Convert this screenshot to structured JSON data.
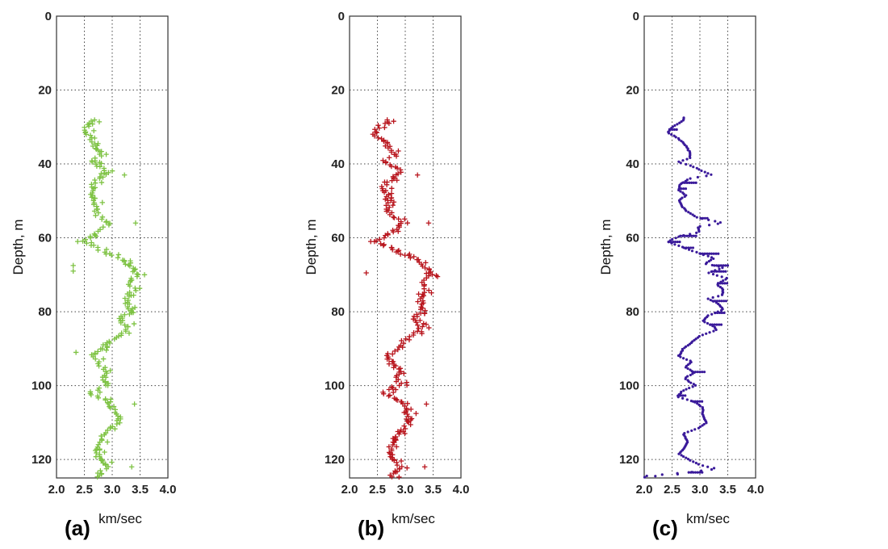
{
  "chart_data": [
    {
      "type": "scatter",
      "panel_label": "(a)",
      "xlabel": "km/sec",
      "ylabel": "Depth, m",
      "xlim": [
        2.0,
        4.0
      ],
      "ylim": [
        0,
        125
      ],
      "y_inverted": true,
      "xticks": [
        "2.0",
        "2.5",
        "3.0",
        "3.5",
        "4.0"
      ],
      "yticks": [
        "0",
        "20",
        "40",
        "60",
        "80",
        "100",
        "120"
      ],
      "grid": true,
      "color": "#7dc242",
      "marker": "plus",
      "profile": [
        [
          28,
          2.72
        ],
        [
          30,
          2.52
        ],
        [
          32,
          2.55
        ],
        [
          34,
          2.65
        ],
        [
          36,
          2.75
        ],
        [
          38,
          2.82
        ],
        [
          39,
          2.6
        ],
        [
          40,
          2.72
        ],
        [
          42,
          2.92
        ],
        [
          44,
          2.75
        ],
        [
          46,
          2.62
        ],
        [
          48,
          2.65
        ],
        [
          50,
          2.7
        ],
        [
          52,
          2.68
        ],
        [
          54,
          2.75
        ],
        [
          56,
          2.95
        ],
        [
          58,
          2.8
        ],
        [
          60,
          2.6
        ],
        [
          61,
          2.45
        ],
        [
          62,
          2.62
        ],
        [
          64,
          2.9
        ],
        [
          66,
          3.2
        ],
        [
          68,
          3.35
        ],
        [
          70,
          3.45
        ],
        [
          72,
          3.3
        ],
        [
          74,
          3.4
        ],
        [
          76,
          3.25
        ],
        [
          78,
          3.3
        ],
        [
          80,
          3.35
        ],
        [
          82,
          3.1
        ],
        [
          84,
          3.3
        ],
        [
          86,
          3.15
        ],
        [
          88,
          2.95
        ],
        [
          90,
          2.85
        ],
        [
          92,
          2.65
        ],
        [
          94,
          2.75
        ],
        [
          96,
          2.9
        ],
        [
          98,
          2.85
        ],
        [
          100,
          2.9
        ],
        [
          102,
          2.6
        ],
        [
          104,
          2.85
        ],
        [
          106,
          3.0
        ],
        [
          108,
          3.05
        ],
        [
          110,
          3.1
        ],
        [
          112,
          2.95
        ],
        [
          114,
          2.8
        ],
        [
          116,
          2.75
        ],
        [
          118,
          2.72
        ],
        [
          120,
          2.8
        ],
        [
          122,
          2.9
        ],
        [
          124,
          2.75
        ]
      ],
      "outliers": [
        [
          67.5,
          2.3
        ],
        [
          69,
          2.3
        ],
        [
          91,
          2.35
        ],
        [
          56,
          3.42
        ],
        [
          43,
          3.22
        ],
        [
          105,
          3.4
        ],
        [
          122,
          3.35
        ],
        [
          70,
          3.58
        ],
        [
          61,
          2.38
        ]
      ]
    },
    {
      "type": "scatter",
      "panel_label": "(b)",
      "xlabel": "km/sec",
      "ylabel": "Depth, m",
      "xlim": [
        2.0,
        4.0
      ],
      "ylim": [
        0,
        125
      ],
      "y_inverted": true,
      "xticks": [
        "2.0",
        "2.5",
        "3.0",
        "3.5",
        "4.0"
      ],
      "yticks": [
        "0",
        "20",
        "40",
        "60",
        "80",
        "100",
        "120"
      ],
      "grid": true,
      "color": "#b8141c",
      "marker": "plus",
      "profile": [
        [
          28,
          2.72
        ],
        [
          30,
          2.52
        ],
        [
          32,
          2.45
        ],
        [
          34,
          2.65
        ],
        [
          36,
          2.75
        ],
        [
          38,
          2.82
        ],
        [
          39,
          2.6
        ],
        [
          40,
          2.72
        ],
        [
          42,
          2.92
        ],
        [
          44,
          2.75
        ],
        [
          46,
          2.62
        ],
        [
          48,
          2.65
        ],
        [
          50,
          2.7
        ],
        [
          52,
          2.68
        ],
        [
          54,
          2.75
        ],
        [
          56,
          2.95
        ],
        [
          58,
          2.8
        ],
        [
          60,
          2.6
        ],
        [
          61,
          2.45
        ],
        [
          62,
          2.62
        ],
        [
          64,
          2.9
        ],
        [
          66,
          3.2
        ],
        [
          68,
          3.35
        ],
        [
          70,
          3.45
        ],
        [
          72,
          3.3
        ],
        [
          74,
          3.4
        ],
        [
          76,
          3.25
        ],
        [
          78,
          3.3
        ],
        [
          80,
          3.35
        ],
        [
          82,
          3.1
        ],
        [
          84,
          3.3
        ],
        [
          86,
          3.15
        ],
        [
          88,
          2.95
        ],
        [
          90,
          2.85
        ],
        [
          92,
          2.65
        ],
        [
          94,
          2.75
        ],
        [
          96,
          2.9
        ],
        [
          98,
          2.85
        ],
        [
          100,
          2.9
        ],
        [
          102,
          2.6
        ],
        [
          104,
          2.85
        ],
        [
          106,
          3.0
        ],
        [
          108,
          3.05
        ],
        [
          110,
          3.1
        ],
        [
          112,
          2.95
        ],
        [
          114,
          2.8
        ],
        [
          116,
          2.75
        ],
        [
          118,
          2.72
        ],
        [
          120,
          2.8
        ],
        [
          122,
          2.9
        ],
        [
          124,
          2.75
        ]
      ],
      "outliers": [
        [
          69.5,
          2.3
        ],
        [
          43,
          3.22
        ],
        [
          56,
          3.42
        ],
        [
          70.5,
          3.58
        ],
        [
          105,
          3.38
        ],
        [
          122,
          3.35
        ],
        [
          61,
          2.38
        ]
      ]
    },
    {
      "type": "scatter",
      "panel_label": "(c)",
      "xlabel": "km/sec",
      "ylabel": "Depth, m",
      "xlim": [
        2.0,
        4.0
      ],
      "ylim": [
        0,
        125
      ],
      "y_inverted": true,
      "xticks": [
        "2.0",
        "2.5",
        "3.0",
        "3.5",
        "4.0"
      ],
      "yticks": [
        "0",
        "20",
        "40",
        "60",
        "80",
        "100",
        "120"
      ],
      "grid": true,
      "color": "#3a1a9a",
      "marker": "dot",
      "profile": [
        [
          27.5,
          2.72
        ],
        [
          28.5,
          2.68
        ],
        [
          30,
          2.5
        ],
        [
          31.5,
          2.42
        ],
        [
          33,
          2.6
        ],
        [
          35,
          2.75
        ],
        [
          37,
          2.82
        ],
        [
          38.5,
          2.82
        ],
        [
          39.5,
          2.6
        ],
        [
          40.5,
          2.85
        ],
        [
          42,
          3.05
        ],
        [
          43,
          3.22
        ],
        [
          44,
          2.8
        ],
        [
          45.5,
          2.65
        ],
        [
          47,
          2.62
        ],
        [
          48.5,
          2.75
        ],
        [
          50,
          2.62
        ],
        [
          51.5,
          2.68
        ],
        [
          53,
          2.78
        ],
        [
          54.5,
          2.95
        ],
        [
          56,
          3.42
        ],
        [
          57,
          2.95
        ],
        [
          58.5,
          3.0
        ],
        [
          59.5,
          2.65
        ],
        [
          61,
          2.42
        ],
        [
          62.5,
          2.68
        ],
        [
          64,
          2.95
        ],
        [
          65.5,
          3.25
        ],
        [
          67,
          3.1
        ],
        [
          68,
          3.42
        ],
        [
          69.5,
          3.15
        ],
        [
          71,
          3.5
        ],
        [
          72.5,
          3.3
        ],
        [
          74,
          3.42
        ],
        [
          75.5,
          3.4
        ],
        [
          76.5,
          3.15
        ],
        [
          78,
          3.35
        ],
        [
          79.5,
          3.42
        ],
        [
          81,
          3.15
        ],
        [
          82.5,
          3.05
        ],
        [
          84,
          3.25
        ],
        [
          85,
          3.3
        ],
        [
          86.5,
          3.0
        ],
        [
          88,
          2.88
        ],
        [
          90,
          2.7
        ],
        [
          92,
          2.62
        ],
        [
          93.5,
          2.85
        ],
        [
          95,
          2.75
        ],
        [
          96.5,
          2.9
        ],
        [
          98,
          2.72
        ],
        [
          100,
          2.92
        ],
        [
          101.5,
          2.68
        ],
        [
          103,
          2.6
        ],
        [
          104.5,
          2.92
        ],
        [
          106,
          3.05
        ],
        [
          108,
          3.05
        ],
        [
          110,
          3.12
        ],
        [
          111.5,
          2.98
        ],
        [
          113,
          2.7
        ],
        [
          115,
          2.78
        ],
        [
          117,
          2.72
        ],
        [
          118.5,
          2.62
        ],
        [
          120,
          2.8
        ],
        [
          121.5,
          3.0
        ],
        [
          122.5,
          3.3
        ],
        [
          123.5,
          2.8
        ],
        [
          124.5,
          2.0
        ]
      ],
      "outliers": [
        [
          124.5,
          2.2
        ],
        [
          124,
          2.6
        ]
      ]
    }
  ]
}
